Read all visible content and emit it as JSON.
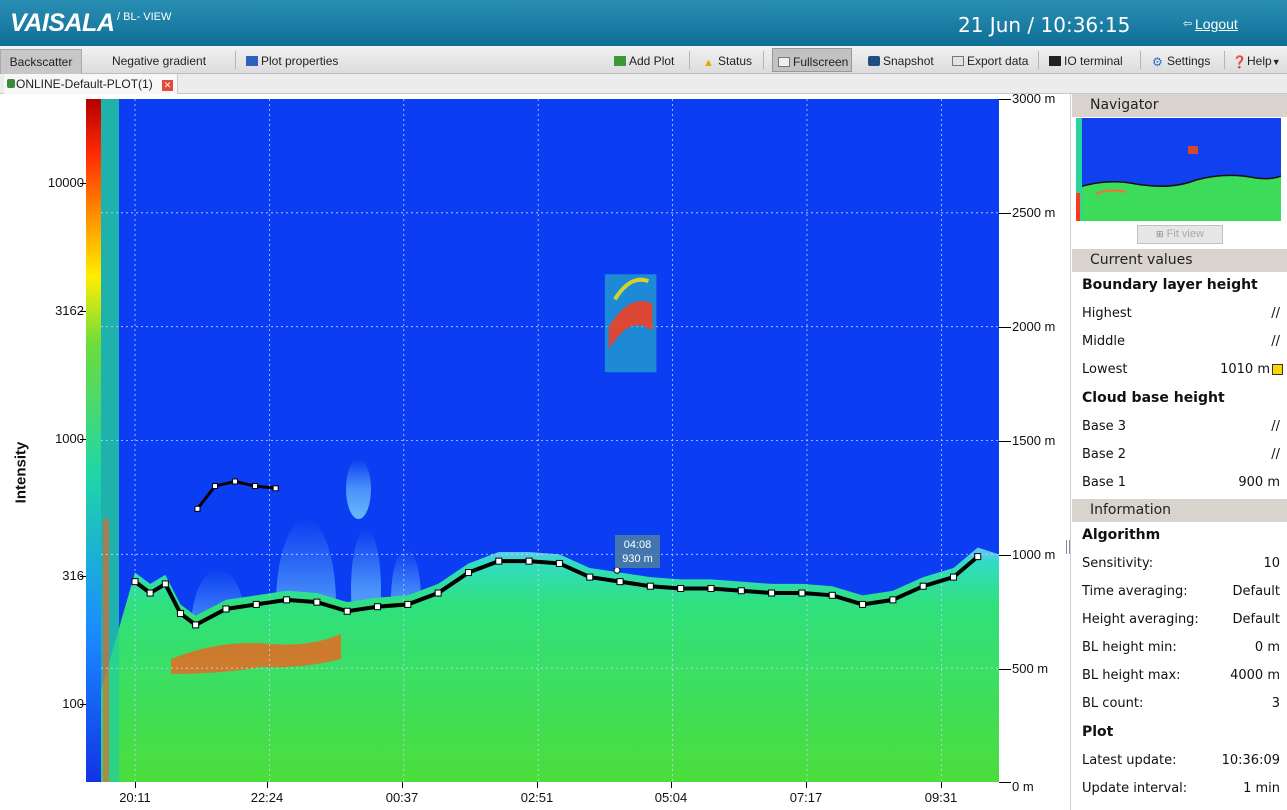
{
  "header": {
    "logo": "VAISALA",
    "product": "/ BL- VIEW",
    "clock": "21 Jun / 10:36:15",
    "logout": "Logout"
  },
  "toolbar": {
    "tabs": [
      "Backscatter",
      "Negative gradient"
    ],
    "plot_properties": "Plot properties",
    "add_plot": "Add Plot",
    "status": "Status",
    "fullscreen": "Fullscreen",
    "snapshot": "Snapshot",
    "export_data": "Export data",
    "io_terminal": "IO terminal",
    "settings": "Settings",
    "help": "Help"
  },
  "document_tab": "ONLINE-Default-PLOT(1)",
  "plot": {
    "y_axis_title": "Intensity",
    "intensity_ticks": [
      "10000",
      "3162",
      "1000",
      "316",
      "100"
    ],
    "height_ticks": [
      "3000 m",
      "2500 m",
      "2000 m",
      "1500 m",
      "1000 m",
      "500 m",
      "0 m"
    ],
    "time_ticks": [
      "20:11",
      "22:24",
      "00:37",
      "02:51",
      "05:04",
      "07:17",
      "09:31"
    ],
    "tooltip_time": "04:08",
    "tooltip_height": "930 m",
    "colors": {
      "background": "#0b3ef2",
      "layer": "#3cdc5a",
      "marker": "#000000"
    }
  },
  "chart_data": {
    "type": "heatmap",
    "title": "",
    "xlabel": "",
    "ylabel": "Intensity",
    "x_ticks": [
      "20:11",
      "22:24",
      "00:37",
      "02:51",
      "05:04",
      "07:17",
      "09:31"
    ],
    "y_right_range_m": [
      0,
      3000
    ],
    "colorbar_ticks": [
      100,
      316,
      1000,
      3162,
      10000
    ],
    "boundary_layer_series": {
      "name": "Lowest",
      "times_hours_since_2011": [
        0.0,
        0.25,
        0.5,
        0.75,
        1.0,
        1.5,
        2.0,
        2.5,
        3.0,
        3.5,
        4.0,
        4.5,
        5.0,
        5.5,
        6.0,
        6.5,
        7.0,
        7.5,
        8.0,
        8.5,
        9.0,
        9.5,
        10.0,
        10.5,
        11.0,
        11.5,
        12.0,
        12.5,
        13.0,
        13.5,
        13.9
      ],
      "heights_m": [
        880,
        830,
        870,
        740,
        690,
        760,
        780,
        800,
        790,
        750,
        770,
        780,
        830,
        920,
        970,
        970,
        960,
        900,
        880,
        860,
        850,
        850,
        840,
        830,
        830,
        820,
        780,
        800,
        860,
        900,
        990
      ]
    },
    "elevated_layer_series": {
      "name": "",
      "times": [
        "21:13",
        "21:30",
        "21:50",
        "22:10",
        "22:30"
      ],
      "heights_m": [
        1200,
        1300,
        1320,
        1300,
        1290
      ]
    },
    "tooltip": {
      "time": "04:08",
      "height_m": 930
    }
  },
  "side": {
    "navigator": "Navigator",
    "fit_view": "Fit view",
    "current_values": "Current values",
    "boundary_layer_height": "Boundary layer height",
    "bl_rows": [
      {
        "k": "Highest",
        "v": "//"
      },
      {
        "k": "Middle",
        "v": "//"
      },
      {
        "k": "Lowest",
        "v": "1010 m"
      }
    ],
    "cloud_base_height": "Cloud base height",
    "cloud_rows": [
      {
        "k": "Base 3",
        "v": "//"
      },
      {
        "k": "Base 2",
        "v": "//"
      },
      {
        "k": "Base 1",
        "v": "900 m"
      }
    ],
    "information": "Information",
    "algorithm": "Algorithm",
    "algo_rows": [
      {
        "k": "Sensitivity:",
        "v": "10"
      },
      {
        "k": "Time averaging:",
        "v": "Default"
      },
      {
        "k": "Height averaging:",
        "v": "Default"
      },
      {
        "k": "BL height min:",
        "v": "0 m"
      },
      {
        "k": "BL height max:",
        "v": "4000 m"
      },
      {
        "k": "BL count:",
        "v": "3"
      }
    ],
    "plot": "Plot",
    "plot_rows": [
      {
        "k": "Latest update:",
        "v": "10:36:09"
      },
      {
        "k": "Update interval:",
        "v": "1 min"
      }
    ]
  }
}
